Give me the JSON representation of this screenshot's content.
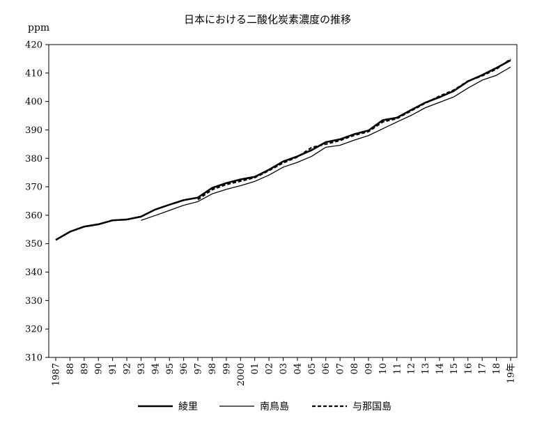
{
  "chart_data": {
    "type": "line",
    "title": "日本における二酸化炭素濃度の推移",
    "ylabel": "ppm",
    "ylim": [
      310,
      420
    ],
    "yticks": [
      310,
      320,
      330,
      340,
      350,
      360,
      370,
      380,
      390,
      400,
      410,
      420
    ],
    "x": [
      1987,
      1988,
      1989,
      1990,
      1991,
      1992,
      1993,
      1994,
      1995,
      1996,
      1997,
      1998,
      1999,
      2000,
      2001,
      2002,
      2003,
      2004,
      2005,
      2006,
      2007,
      2008,
      2009,
      2010,
      2011,
      2012,
      2013,
      2014,
      2015,
      2016,
      2017,
      2018,
      2019
    ],
    "x_tick_labels": [
      "1987",
      "88",
      "89",
      "90",
      "91",
      "92",
      "93",
      "94",
      "95",
      "96",
      "97",
      "98",
      "99",
      "2000",
      "01",
      "02",
      "03",
      "04",
      "05",
      "06",
      "07",
      "08",
      "09",
      "10",
      "11",
      "12",
      "13",
      "14",
      "15",
      "16",
      "17",
      "18",
      "19年"
    ],
    "grid": false,
    "legend_position": "bottom",
    "series": [
      {
        "name": "綾里",
        "style": "solid-thick",
        "color": "#000000",
        "values": [
          351.3,
          354.2,
          356.0,
          356.8,
          358.2,
          358.5,
          359.5,
          362.0,
          363.7,
          365.3,
          366.2,
          369.6,
          371.3,
          372.6,
          373.5,
          376.0,
          378.9,
          380.7,
          382.9,
          385.7,
          386.7,
          388.5,
          389.8,
          393.4,
          394.3,
          397.0,
          399.6,
          401.5,
          403.7,
          407.1,
          409.3,
          411.8,
          414.5
        ]
      },
      {
        "name": "南鳥島",
        "style": "solid-thin",
        "color": "#000000",
        "values": [
          null,
          null,
          null,
          null,
          null,
          null,
          358.2,
          359.9,
          361.7,
          363.5,
          364.8,
          367.5,
          369.1,
          370.4,
          371.9,
          374.1,
          376.9,
          378.6,
          380.7,
          383.9,
          384.6,
          386.4,
          388.0,
          390.4,
          392.8,
          395.1,
          397.8,
          399.7,
          401.6,
          404.7,
          407.5,
          409.2,
          412.1
        ]
      },
      {
        "name": "与那国島",
        "style": "dashed",
        "color": "#000000",
        "values": [
          null,
          null,
          null,
          null,
          null,
          null,
          null,
          null,
          null,
          null,
          365.5,
          369.0,
          370.8,
          372.0,
          373.2,
          375.7,
          378.4,
          380.5,
          383.8,
          385.0,
          386.3,
          388.1,
          389.4,
          392.8,
          394.0,
          396.7,
          399.4,
          401.9,
          404.0,
          407.2,
          409.0,
          411.4,
          414.9
        ]
      }
    ]
  }
}
